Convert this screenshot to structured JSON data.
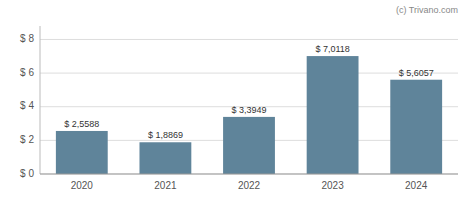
{
  "chart_data": {
    "type": "bar",
    "categories": [
      "2020",
      "2021",
      "2022",
      "2023",
      "2024"
    ],
    "values": [
      2.5588,
      1.8869,
      3.3949,
      7.0118,
      5.6057
    ],
    "value_labels": [
      "$ 2,5588",
      "$ 1,8869",
      "$ 3,3949",
      "$ 7,0118",
      "$ 5,6057"
    ],
    "data_labels": true,
    "color": "#5f849a",
    "ylim": [
      0,
      8.8
    ],
    "yticks": [
      {
        "value": 0,
        "label": "$ 0"
      },
      {
        "value": 2,
        "label": "$ 2"
      },
      {
        "value": 4,
        "label": "$ 4"
      },
      {
        "value": 6,
        "label": "$ 6"
      },
      {
        "value": 8,
        "label": "$ 8"
      }
    ],
    "grid": true,
    "annotations": [
      "(c) Trivano.com"
    ]
  }
}
